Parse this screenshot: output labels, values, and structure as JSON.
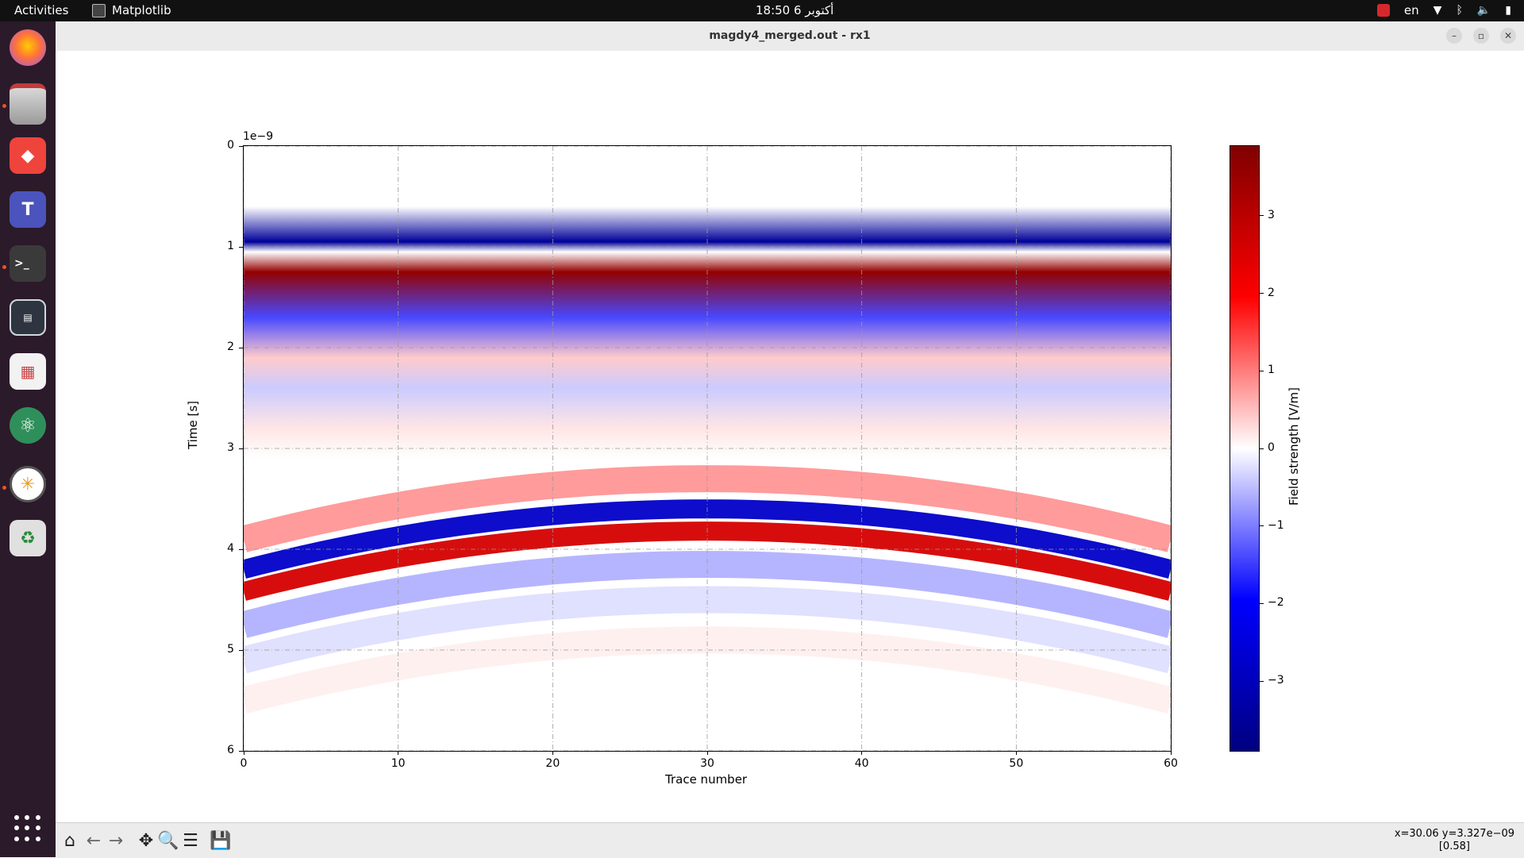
{
  "topbar": {
    "activities": "Activities",
    "app_name": "Matplotlib",
    "clock": "18:50  6 أكتوبر",
    "language": "en"
  },
  "dock": {
    "icons": [
      "firefox-icon",
      "files-icon",
      "anydesk-icon",
      "teams-icon",
      "terminal-icon",
      "split-terminal-icon",
      "document-viewer-icon",
      "atom-icon",
      "matplotlib-icon",
      "trash-icon",
      "show-apps-icon"
    ]
  },
  "window": {
    "title": "magdy4_merged.out - rx1"
  },
  "chart_data": {
    "type": "heatmap",
    "xlabel": "Trace number",
    "ylabel": "Time [s]",
    "offset_text": "1e−9",
    "xlim": [
      0,
      60
    ],
    "ylim": [
      6,
      0
    ],
    "xticks": [
      "0",
      "10",
      "20",
      "30",
      "40",
      "50",
      "60"
    ],
    "yticks": [
      "0",
      "1",
      "2",
      "3",
      "4",
      "5",
      "6"
    ],
    "grid": true,
    "colormap": "seismic",
    "colorbar": {
      "label": "Field strength [V/m]",
      "range": [
        -3.9,
        3.9
      ],
      "ticks": [
        "3",
        "2",
        "1",
        "0",
        "−1",
        "−2",
        "−3"
      ]
    },
    "direct_wave": [
      {
        "time": 0.95,
        "value": -3.5
      },
      {
        "time": 1.05,
        "value": 0.0
      },
      {
        "time": 1.25,
        "value": 3.6
      },
      {
        "time": 1.7,
        "value": -1.4
      },
      {
        "time": 2.1,
        "value": 0.4
      },
      {
        "time": 2.4,
        "value": -0.4
      },
      {
        "time": 2.8,
        "value": 0.2
      }
    ],
    "reflection": {
      "apex_trace": 30,
      "apex_time": 3.6,
      "edge_time": 4.2,
      "bands": [
        {
          "offset": -0.3,
          "value": 0.8
        },
        {
          "offset": 0.0,
          "value": -2.8
        },
        {
          "offset": 0.22,
          "value": 2.6
        },
        {
          "offset": 0.55,
          "value": -0.6
        },
        {
          "offset": 0.9,
          "value": -0.25
        },
        {
          "offset": 1.3,
          "value": 0.12
        }
      ]
    }
  },
  "toolbar": {
    "buttons": [
      "home-icon",
      "back-icon",
      "forward-icon",
      "pan-icon",
      "zoom-icon",
      "configure-icon",
      "save-icon"
    ],
    "coords_line1": "x=30.06 y=3.327e−09",
    "coords_line2": "[0.58]"
  },
  "colors": {
    "topbar": "#111111",
    "dock": "#2b1a2a",
    "accent": "#e95420"
  }
}
